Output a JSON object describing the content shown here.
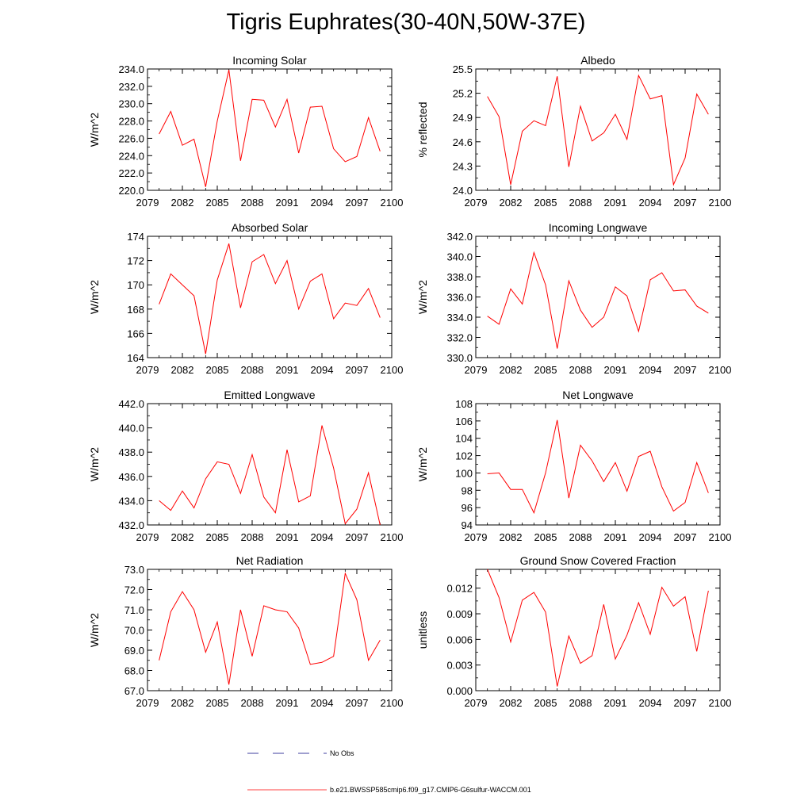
{
  "title": "Tigris Euphrates(30-40N,50W-37E)",
  "colors": {
    "model": "#ff0000",
    "obs": "#000080",
    "axes": "#000000"
  },
  "legend": [
    {
      "label": "No Obs",
      "style": "dashed",
      "color": "#000080"
    },
    {
      "label": "b.e21.BWSSP585cmip6.f09_g17.CMIP6-G6sulfur-WACCM.001",
      "style": "solid",
      "color": "#ff0000"
    }
  ],
  "chart_data": [
    {
      "type": "line",
      "title": "Incoming Solar",
      "ylabel": "W/m^2",
      "xlim": [
        2079,
        2100
      ],
      "ylim": [
        220.0,
        234.0
      ],
      "xticks": [
        2079,
        2082,
        2085,
        2088,
        2091,
        2094,
        2097,
        2100
      ],
      "xtick_labels": [
        "2079",
        "2082",
        "2085",
        "2088",
        "2091",
        "2094",
        "2097",
        "2100"
      ],
      "yticks": [
        220,
        222,
        224,
        226,
        228,
        230,
        232,
        234
      ],
      "ytick_labels": [
        "220.0",
        "222.0",
        "224.0",
        "226.0",
        "228.0",
        "230.0",
        "232.0",
        "234.0"
      ],
      "x": [
        2080,
        2081,
        2082,
        2083,
        2084,
        2085,
        2086,
        2087,
        2088,
        2089,
        2090,
        2091,
        2092,
        2093,
        2094,
        2095,
        2096,
        2097,
        2098,
        2099
      ],
      "series": [
        {
          "values": [
            226.5,
            229.1,
            225.2,
            225.9,
            220.4,
            228.0,
            233.9,
            223.4,
            230.5,
            230.4,
            227.3,
            230.5,
            224.3,
            229.6,
            229.7,
            224.8,
            223.3,
            223.9,
            228.4,
            224.5
          ]
        }
      ]
    },
    {
      "type": "line",
      "title": "Albedo",
      "ylabel": "% reflected",
      "xlim": [
        2079,
        2100
      ],
      "ylim": [
        24.0,
        25.5
      ],
      "xticks": [
        2079,
        2082,
        2085,
        2088,
        2091,
        2094,
        2097,
        2100
      ],
      "xtick_labels": [
        "2079",
        "2082",
        "2085",
        "2088",
        "2091",
        "2094",
        "2097",
        "2100"
      ],
      "yticks": [
        24.0,
        24.3,
        24.6,
        24.9,
        25.2,
        25.5
      ],
      "ytick_labels": [
        "24.0",
        "24.3",
        "24.6",
        "24.9",
        "25.2",
        "25.5"
      ],
      "x": [
        2080,
        2081,
        2082,
        2083,
        2084,
        2085,
        2086,
        2087,
        2088,
        2089,
        2090,
        2091,
        2092,
        2093,
        2094,
        2095,
        2096,
        2097,
        2098,
        2099
      ],
      "series": [
        {
          "values": [
            25.16,
            24.91,
            24.07,
            24.73,
            24.86,
            24.8,
            25.41,
            24.29,
            25.04,
            24.61,
            24.71,
            24.94,
            24.63,
            25.42,
            25.13,
            25.17,
            24.07,
            24.4,
            25.19,
            24.94
          ]
        }
      ]
    },
    {
      "type": "line",
      "title": "Absorbed Solar",
      "ylabel": "W/m^2",
      "xlim": [
        2079,
        2100
      ],
      "ylim": [
        164,
        174
      ],
      "xticks": [
        2079,
        2082,
        2085,
        2088,
        2091,
        2094,
        2097,
        2100
      ],
      "xtick_labels": [
        "2079",
        "2082",
        "2085",
        "2088",
        "2091",
        "2094",
        "2097",
        "2100"
      ],
      "yticks": [
        164,
        166,
        168,
        170,
        172,
        174
      ],
      "ytick_labels": [
        "164",
        "166",
        "168",
        "170",
        "172",
        "174"
      ],
      "x": [
        2080,
        2081,
        2082,
        2083,
        2084,
        2085,
        2086,
        2087,
        2088,
        2089,
        2090,
        2091,
        2092,
        2093,
        2094,
        2095,
        2096,
        2097,
        2098,
        2099
      ],
      "series": [
        {
          "values": [
            168.4,
            170.9,
            170.0,
            169.1,
            164.3,
            170.4,
            173.4,
            168.1,
            171.9,
            172.5,
            170.1,
            172.0,
            168.0,
            170.3,
            170.9,
            167.2,
            168.5,
            168.3,
            169.7,
            167.3
          ]
        }
      ]
    },
    {
      "type": "line",
      "title": "Incoming Longwave",
      "ylabel": "W/m^2",
      "xlim": [
        2079,
        2100
      ],
      "ylim": [
        330.0,
        342.0
      ],
      "xticks": [
        2079,
        2082,
        2085,
        2088,
        2091,
        2094,
        2097,
        2100
      ],
      "xtick_labels": [
        "2079",
        "2082",
        "2085",
        "2088",
        "2091",
        "2094",
        "2097",
        "2100"
      ],
      "yticks": [
        330,
        332,
        334,
        336,
        338,
        340,
        342
      ],
      "ytick_labels": [
        "330.0",
        "332.0",
        "334.0",
        "336.0",
        "338.0",
        "340.0",
        "342.0"
      ],
      "x": [
        2080,
        2081,
        2082,
        2083,
        2084,
        2085,
        2086,
        2087,
        2088,
        2089,
        2090,
        2091,
        2092,
        2093,
        2094,
        2095,
        2096,
        2097,
        2098,
        2099
      ],
      "series": [
        {
          "values": [
            334.1,
            333.3,
            336.8,
            335.3,
            340.4,
            337.2,
            330.9,
            337.6,
            334.7,
            333.0,
            334.0,
            337.0,
            336.1,
            332.6,
            337.7,
            338.4,
            336.6,
            336.7,
            335.1,
            334.4
          ]
        }
      ]
    },
    {
      "type": "line",
      "title": "Emitted Longwave",
      "ylabel": "W/m^2",
      "xlim": [
        2079,
        2100
      ],
      "ylim": [
        432.0,
        442.0
      ],
      "xticks": [
        2079,
        2082,
        2085,
        2088,
        2091,
        2094,
        2097,
        2100
      ],
      "xtick_labels": [
        "2079",
        "2082",
        "2085",
        "2088",
        "2091",
        "2094",
        "2097",
        "2100"
      ],
      "yticks": [
        432,
        434,
        436,
        438,
        440,
        442
      ],
      "ytick_labels": [
        "432.0",
        "434.0",
        "436.0",
        "438.0",
        "440.0",
        "442.0"
      ],
      "x": [
        2080,
        2081,
        2082,
        2083,
        2084,
        2085,
        2086,
        2087,
        2088,
        2089,
        2090,
        2091,
        2092,
        2093,
        2094,
        2095,
        2096,
        2097,
        2098,
        2099
      ],
      "series": [
        {
          "values": [
            434.0,
            433.2,
            434.8,
            433.4,
            435.8,
            437.2,
            437.0,
            434.6,
            437.8,
            434.3,
            433.0,
            438.2,
            433.9,
            434.4,
            440.2,
            436.7,
            432.1,
            433.3,
            436.3,
            432.0
          ]
        }
      ]
    },
    {
      "type": "line",
      "title": "Net Longwave",
      "ylabel": "W/m^2",
      "xlim": [
        2079,
        2100
      ],
      "ylim": [
        94,
        108
      ],
      "xticks": [
        2079,
        2082,
        2085,
        2088,
        2091,
        2094,
        2097,
        2100
      ],
      "xtick_labels": [
        "2079",
        "2082",
        "2085",
        "2088",
        "2091",
        "2094",
        "2097",
        "2100"
      ],
      "yticks": [
        94,
        96,
        98,
        100,
        102,
        104,
        106,
        108
      ],
      "ytick_labels": [
        "94",
        "96",
        "98",
        "100",
        "102",
        "104",
        "106",
        "108"
      ],
      "x": [
        2080,
        2081,
        2082,
        2083,
        2084,
        2085,
        2086,
        2087,
        2088,
        2089,
        2090,
        2091,
        2092,
        2093,
        2094,
        2095,
        2096,
        2097,
        2098,
        2099
      ],
      "series": [
        {
          "values": [
            99.9,
            100.0,
            98.1,
            98.1,
            95.4,
            100.0,
            106.1,
            97.1,
            103.2,
            101.4,
            99.0,
            101.2,
            97.9,
            101.9,
            102.5,
            98.4,
            95.6,
            96.6,
            101.2,
            97.7
          ]
        }
      ]
    },
    {
      "type": "line",
      "title": "Net Radiation",
      "ylabel": "W/m^2",
      "xlim": [
        2079,
        2100
      ],
      "ylim": [
        67.0,
        73.0
      ],
      "xticks": [
        2079,
        2082,
        2085,
        2088,
        2091,
        2094,
        2097,
        2100
      ],
      "xtick_labels": [
        "2079",
        "2082",
        "2085",
        "2088",
        "2091",
        "2094",
        "2097",
        "2100"
      ],
      "yticks": [
        67,
        68,
        69,
        70,
        71,
        72,
        73
      ],
      "ytick_labels": [
        "67.0",
        "68.0",
        "69.0",
        "70.0",
        "71.0",
        "72.0",
        "73.0"
      ],
      "x": [
        2080,
        2081,
        2082,
        2083,
        2084,
        2085,
        2086,
        2087,
        2088,
        2089,
        2090,
        2091,
        2092,
        2093,
        2094,
        2095,
        2096,
        2097,
        2098,
        2099
      ],
      "series": [
        {
          "values": [
            68.5,
            70.9,
            71.9,
            71.0,
            68.9,
            70.4,
            67.3,
            71.0,
            68.7,
            71.2,
            71.0,
            70.9,
            70.1,
            68.3,
            68.4,
            68.7,
            72.8,
            71.5,
            68.5,
            69.5
          ]
        }
      ]
    },
    {
      "type": "line",
      "title": "Ground Snow Covered Fraction",
      "ylabel": "unitless",
      "xlim": [
        2079,
        2100
      ],
      "ylim": [
        0.0,
        0.0142
      ],
      "xticks": [
        2079,
        2082,
        2085,
        2088,
        2091,
        2094,
        2097,
        2100
      ],
      "xtick_labels": [
        "2079",
        "2082",
        "2085",
        "2088",
        "2091",
        "2094",
        "2097",
        "2100"
      ],
      "yticks": [
        0.0,
        0.003,
        0.006,
        0.009,
        0.012
      ],
      "ytick_labels": [
        "0.000",
        "0.003",
        "0.006",
        "0.009",
        "0.012"
      ],
      "x": [
        2080,
        2081,
        2082,
        2083,
        2084,
        2085,
        2086,
        2087,
        2088,
        2089,
        2090,
        2091,
        2092,
        2093,
        2094,
        2095,
        2096,
        2097,
        2098,
        2099
      ],
      "series": [
        {
          "values": [
            0.0142,
            0.0109,
            0.0057,
            0.0106,
            0.0115,
            0.0092,
            0.0005,
            0.0064,
            0.0032,
            0.0041,
            0.0101,
            0.0037,
            0.0065,
            0.0103,
            0.0066,
            0.0121,
            0.0099,
            0.011,
            0.0046,
            0.0117
          ]
        }
      ]
    }
  ]
}
